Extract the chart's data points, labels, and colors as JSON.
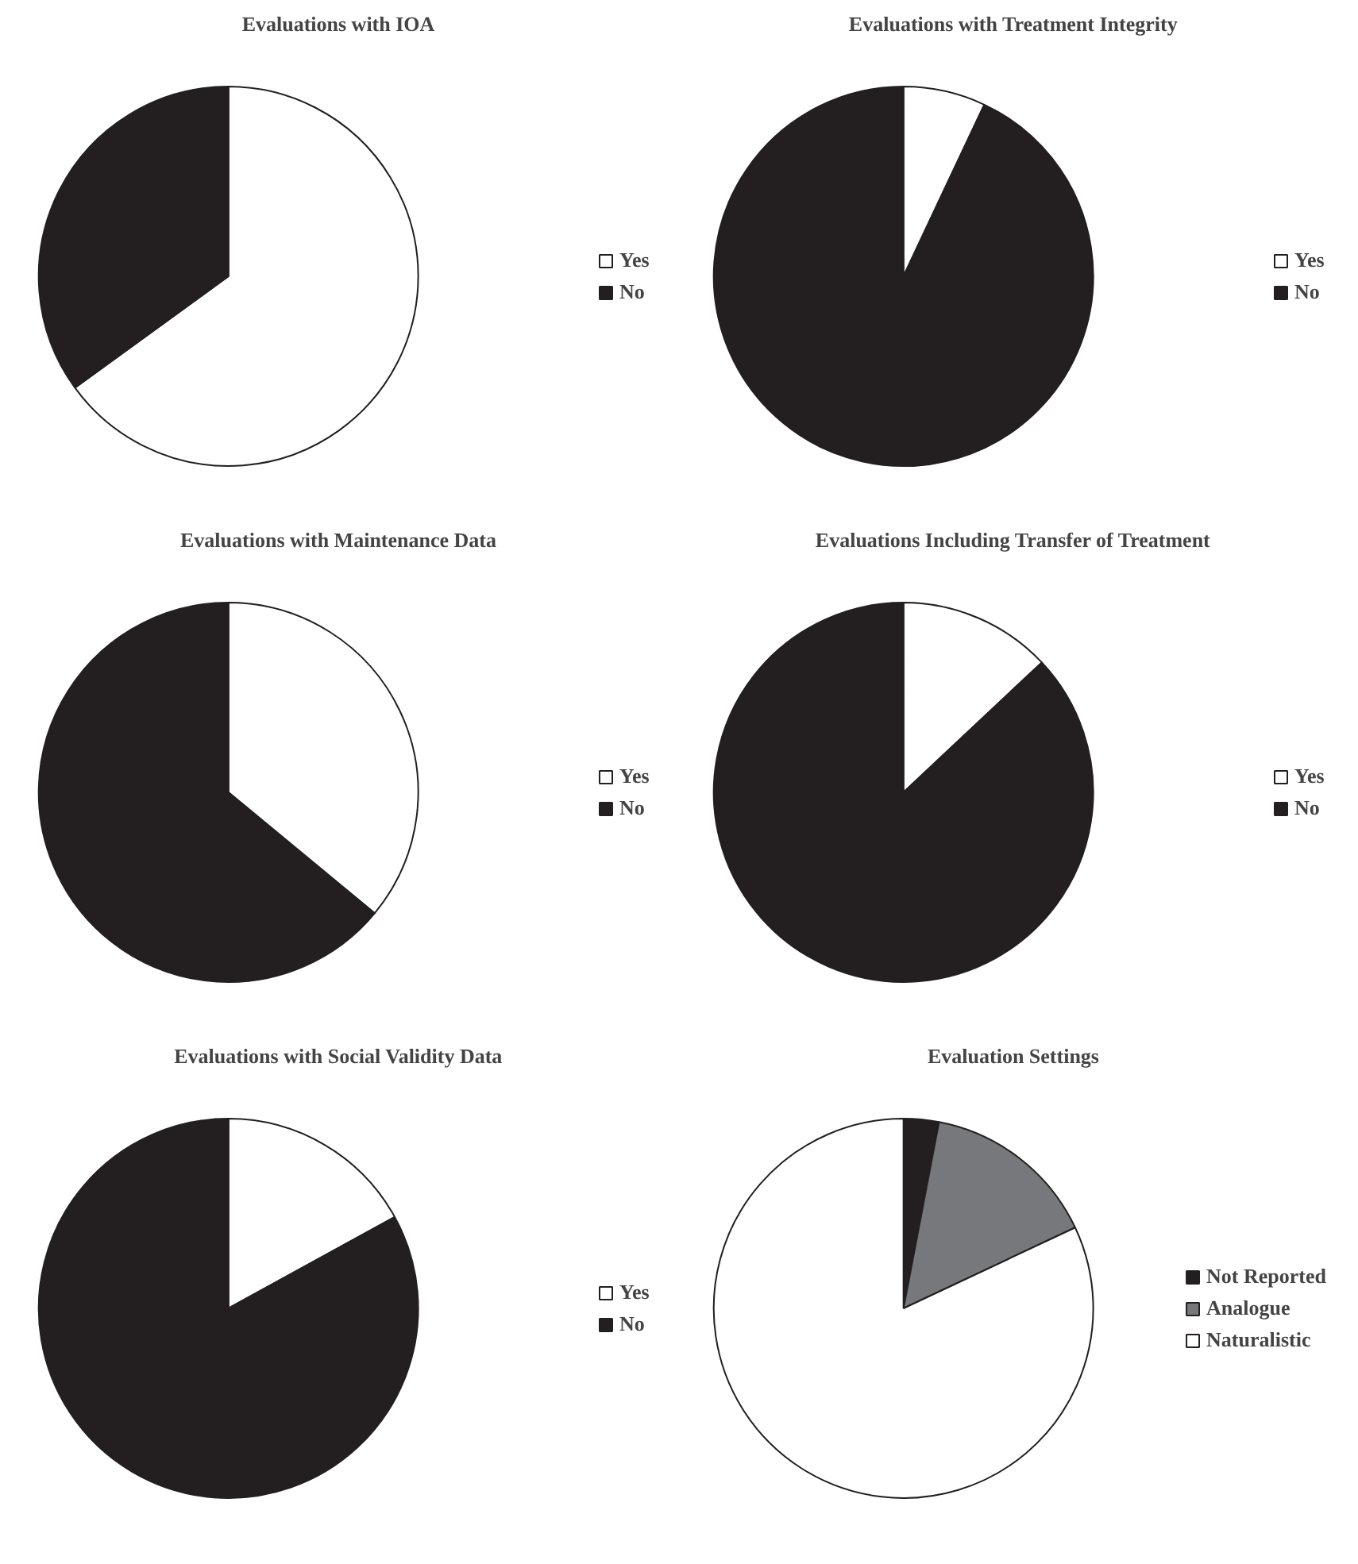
{
  "chart_data": [
    {
      "type": "pie",
      "title": "Evaluations with IOA",
      "categories": [
        "Yes",
        "No"
      ],
      "values": [
        65,
        35
      ],
      "colors": [
        "#ffffff",
        "#231f20"
      ],
      "legend": "right"
    },
    {
      "type": "pie",
      "title": "Evaluations with Treatment Integrity",
      "categories": [
        "Yes",
        "No"
      ],
      "values": [
        7,
        93
      ],
      "colors": [
        "#ffffff",
        "#231f20"
      ],
      "legend": "right"
    },
    {
      "type": "pie",
      "title": "Evaluations with Maintenance Data",
      "categories": [
        "Yes",
        "No"
      ],
      "values": [
        36,
        64
      ],
      "colors": [
        "#ffffff",
        "#231f20"
      ],
      "legend": "right"
    },
    {
      "type": "pie",
      "title": "Evaluations Including Transfer of Treatment",
      "categories": [
        "Yes",
        "No"
      ],
      "values": [
        13,
        87
      ],
      "colors": [
        "#ffffff",
        "#231f20"
      ],
      "legend": "right"
    },
    {
      "type": "pie",
      "title": "Evaluations with Social Validity Data",
      "categories": [
        "Yes",
        "No"
      ],
      "values": [
        17,
        83
      ],
      "colors": [
        "#ffffff",
        "#231f20"
      ],
      "legend": "right"
    },
    {
      "type": "pie",
      "title": "Evaluation Settings",
      "categories": [
        "Not Reported",
        "Analogue",
        "Naturalistic"
      ],
      "values": [
        3,
        15,
        82
      ],
      "colors": [
        "#231f20",
        "#77787b",
        "#ffffff"
      ],
      "legend": "right"
    }
  ]
}
